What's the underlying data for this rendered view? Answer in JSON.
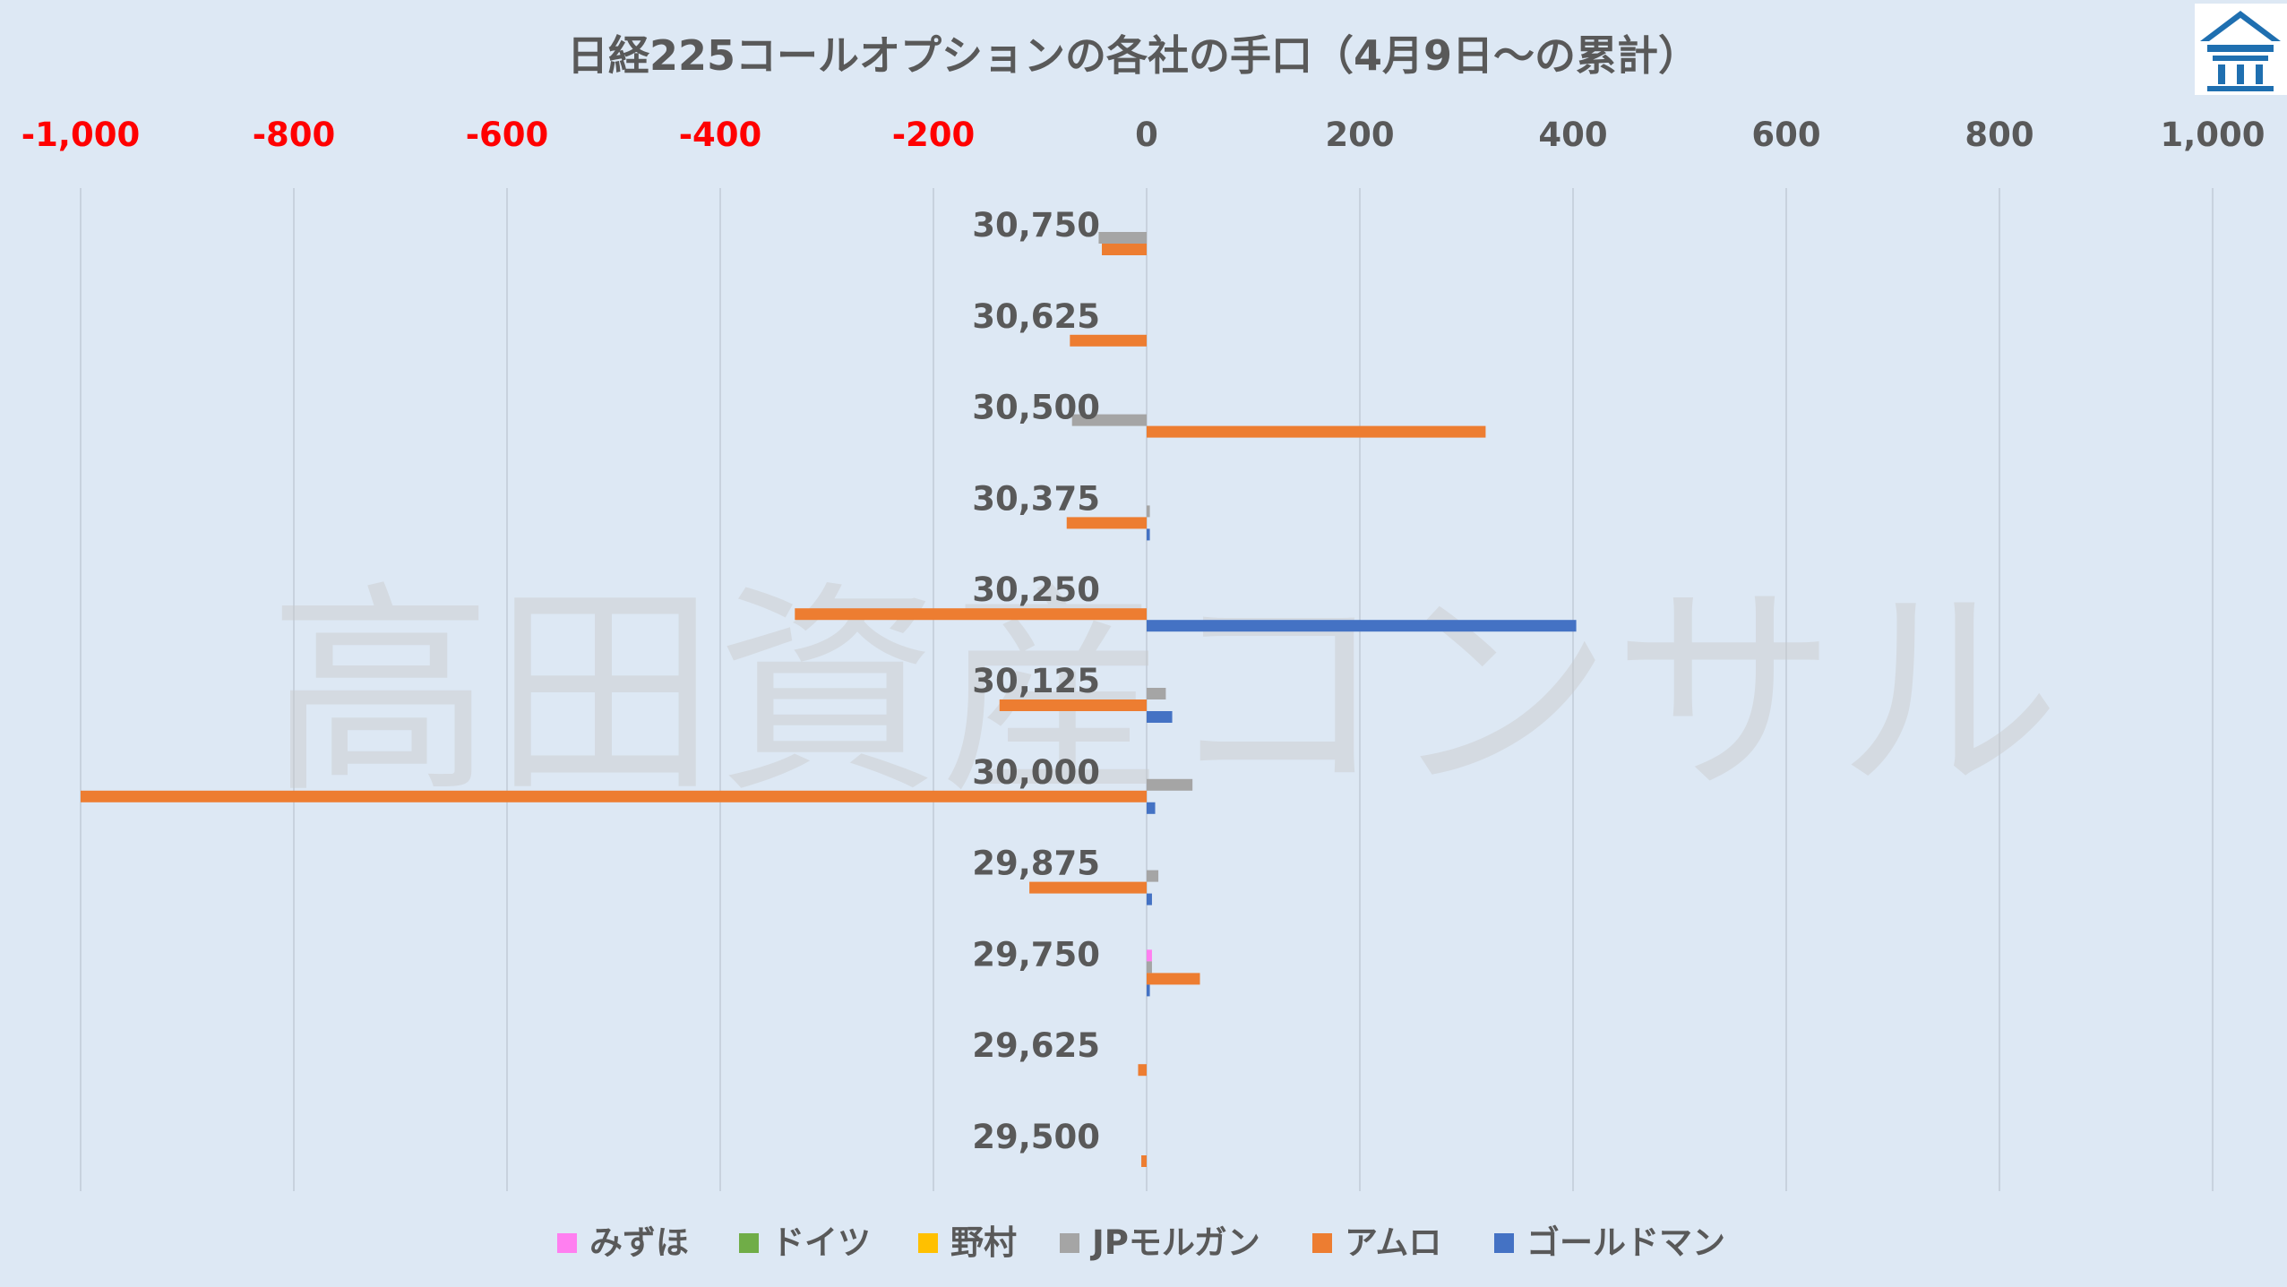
{
  "watermark": "高田資産コンサル",
  "colors": {
    "background": "#dde8f4",
    "negative_tick": "#ff0000",
    "positive_tick": "#595959",
    "gridline": "#c8d2de",
    "logo": "#1f6fb0"
  },
  "logo": {
    "icon": "building-logo-icon"
  },
  "chart_data": {
    "type": "bar",
    "orientation": "horizontal",
    "title": "日経225コールオプションの各社の手口（4月9日～の累計）",
    "xlim": [
      -1000,
      1000
    ],
    "x_ticks": [
      -1000,
      -800,
      -600,
      -400,
      -200,
      0,
      200,
      400,
      600,
      800,
      1000
    ],
    "x_tick_labels": [
      "-1,000",
      "-800",
      "-600",
      "-400",
      "-200",
      "0",
      "200",
      "400",
      "600",
      "800",
      "1,000"
    ],
    "x_axis_position": "top",
    "grid": true,
    "legend_position": "bottom",
    "categories": [
      "30,750",
      "30,625",
      "30,500",
      "30,375",
      "30,250",
      "30,125",
      "30,000",
      "29,875",
      "29,750",
      "29,625",
      "29,500"
    ],
    "series": [
      {
        "name": "みずほ",
        "color": "#ff7ff0",
        "values": [
          0,
          0,
          0,
          0,
          0,
          0,
          0,
          0,
          5,
          0,
          0
        ]
      },
      {
        "name": "ドイツ",
        "color": "#70ad47",
        "values": [
          0,
          0,
          0,
          0,
          0,
          0,
          0,
          0,
          0,
          0,
          0
        ]
      },
      {
        "name": "野村",
        "color": "#ffc000",
        "values": [
          0,
          0,
          0,
          0,
          0,
          0,
          0,
          0,
          0,
          0,
          0
        ]
      },
      {
        "name": "JPモルガン",
        "color": "#a5a5a5",
        "values": [
          -45,
          0,
          -70,
          3,
          0,
          18,
          43,
          11,
          5,
          0,
          0
        ]
      },
      {
        "name": "アムロ",
        "color": "#ed7d31",
        "values": [
          -42,
          -72,
          318,
          -75,
          -330,
          -138,
          -1000,
          -110,
          50,
          -8,
          -5
        ]
      },
      {
        "name": "ゴールドマン",
        "color": "#4472c4",
        "values": [
          0,
          0,
          0,
          3,
          403,
          24,
          8,
          5,
          3,
          0,
          0
        ]
      }
    ]
  }
}
